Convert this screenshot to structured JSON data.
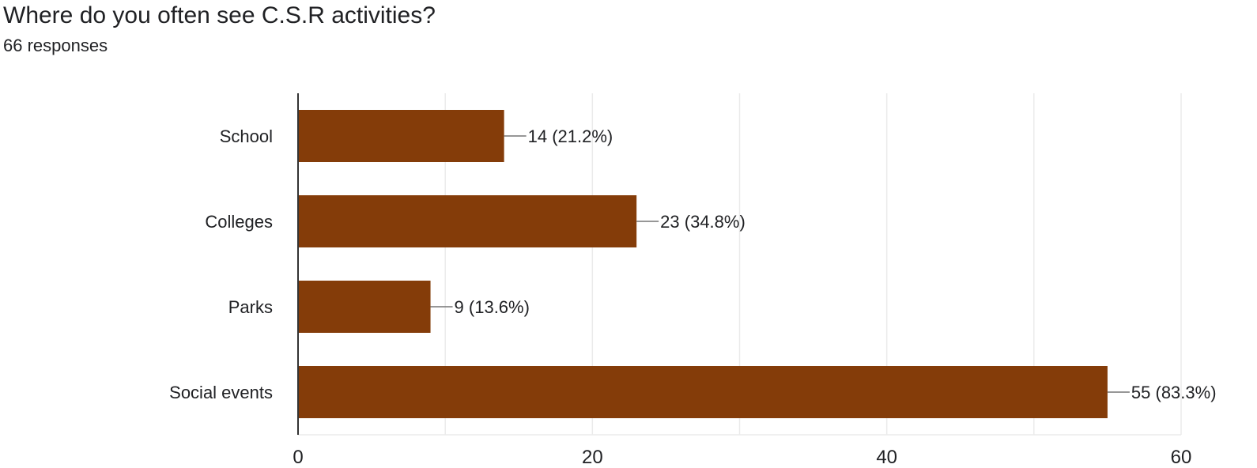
{
  "header": {
    "title": "Where do you often see C.S.R activities?",
    "subtitle": "66 responses"
  },
  "chart_data": {
    "type": "bar",
    "orientation": "horizontal",
    "categories": [
      "School",
      "Colleges",
      "Parks",
      "Social events"
    ],
    "values": [
      14,
      23,
      9,
      55
    ],
    "data_labels": [
      "14 (21.2%)",
      "23 (34.8%)",
      "9 (13.6%)",
      "55 (83.3%)"
    ],
    "xlim": [
      0,
      60
    ],
    "xticks": [
      0,
      20,
      40,
      60
    ],
    "grid": true,
    "bar_color": "#843c09",
    "title": "Where do you often see C.S.R activities?",
    "subtitle": "66 responses"
  }
}
